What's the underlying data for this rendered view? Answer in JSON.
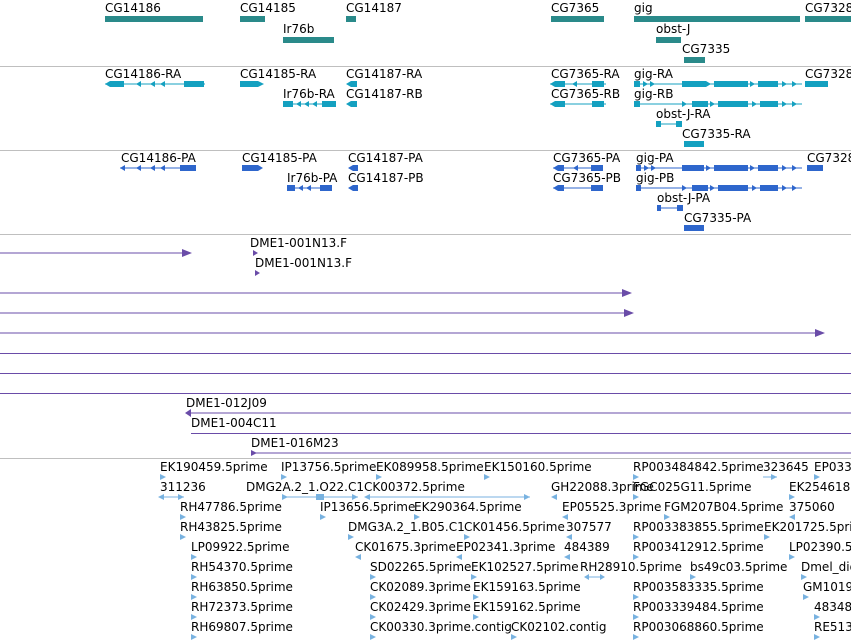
{
  "colors": {
    "gene": "#2a8a8a",
    "transcript": "#14a0c0",
    "protein": "#2e66cc",
    "clone": "#6a4ca8",
    "est": "#78b2e0",
    "divider": "#bfbfbf"
  },
  "genes": {
    "labels": [
      "CG14186",
      "CG14185",
      "CG14187",
      "Ir76b",
      "CG7365",
      "gig",
      "obst-J",
      "CG7335",
      "CG7328"
    ]
  },
  "transcripts": {
    "labels": [
      "CG14186-RA",
      "CG14185-RA",
      "CG14187-RA",
      "Ir76b-RA",
      "CG14187-RB",
      "CG7365-RA",
      "CG7365-RB",
      "gig-RA",
      "gig-RB",
      "obst-J-RA",
      "CG7335-RA",
      "CG7328"
    ]
  },
  "proteins": {
    "labels": [
      "CG14186-PA",
      "CG14185-PA",
      "CG14187-PA",
      "Ir76b-PA",
      "CG14187-PB",
      "CG7365-PA",
      "CG7365-PB",
      "gig-PA",
      "gig-PB",
      "obst-J-PA",
      "CG7335-PA",
      "CG7328"
    ]
  },
  "clones": {
    "labels": [
      "DME1-001N13.F",
      "DME1-001N13.F",
      "DME1-012J09",
      "DME1-004C11",
      "DME1-016M23"
    ]
  },
  "ests": {
    "labels": [
      "EK190459.5prime",
      "IP13756.5prime",
      "EK089958.5prime",
      "EK150160.5prime",
      "RP003484842.5prime",
      "323645",
      "EP033",
      "311236",
      "DMG2A.2_1.O22.C1",
      "CK00372.5prime",
      "GH22088.3prime",
      "FGC025G11.5prime",
      "EK254618",
      "RH47786.5prime",
      "IP13656.5prime",
      "EK290364.5prime",
      "EP05525.3prime",
      "FGM207B04.5prime",
      "375060",
      "RH43825.5prime",
      "DMG3A.2_1.B05.C1",
      "CK01456.5prime",
      "307577",
      "RP003383855.5prime",
      "EK201725.5prime",
      "LP09922.5prime",
      "CK01675.3prime",
      "EP02341.3prime",
      "484389",
      "RP003412912.5prime",
      "LP02390.5",
      "RH54370.5prime",
      "SD02265.5prime",
      "EK102527.5prime",
      "RH28910.5prime",
      "bs49c03.5prime",
      "Dmel_dig",
      "RH63850.5prime",
      "CK02089.3prime",
      "EK159163.5prime",
      "RP003583335.5prime",
      "GM1019",
      "RH72373.5prime",
      "CK02429.3prime",
      "EK159162.5prime",
      "RP003339484.5prime",
      "48348",
      "RH69807.5prime",
      "CK00330.3prime.contig",
      "CK02102.contig",
      "RP003068860.5prime",
      "RE513"
    ]
  }
}
